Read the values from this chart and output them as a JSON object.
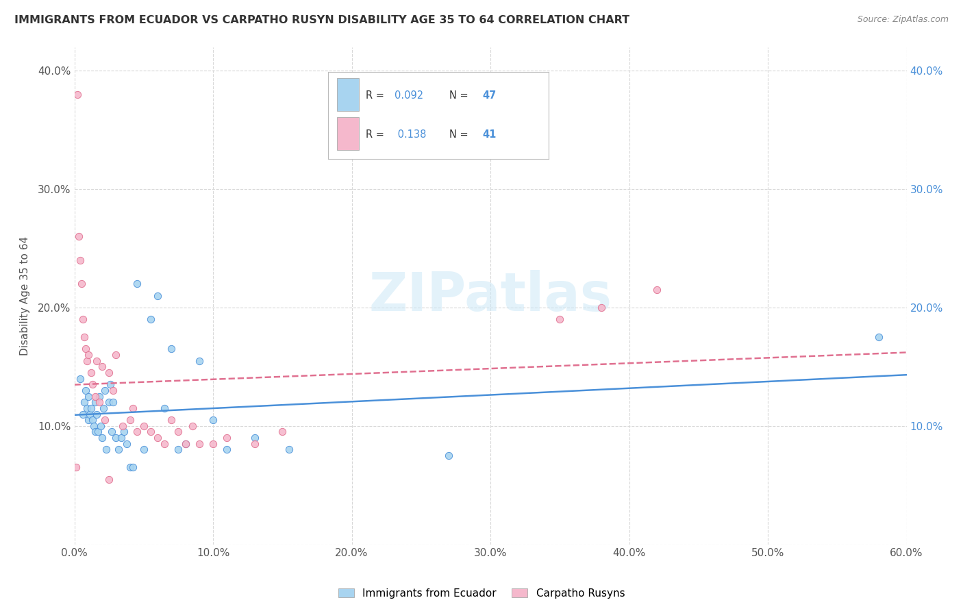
{
  "title": "IMMIGRANTS FROM ECUADOR VS CARPATHO RUSYN DISABILITY AGE 35 TO 64 CORRELATION CHART",
  "source": "Source: ZipAtlas.com",
  "ylabel": "Disability Age 35 to 64",
  "xlim": [
    0.0,
    0.6
  ],
  "ylim": [
    0.0,
    0.42
  ],
  "xticks": [
    0.0,
    0.1,
    0.2,
    0.3,
    0.4,
    0.5,
    0.6
  ],
  "yticks": [
    0.0,
    0.1,
    0.2,
    0.3,
    0.4
  ],
  "ytick_labels": [
    "",
    "10.0%",
    "20.0%",
    "30.0%",
    "40.0%"
  ],
  "xtick_labels": [
    "0.0%",
    "10.0%",
    "20.0%",
    "30.0%",
    "40.0%",
    "50.0%",
    "60.0%"
  ],
  "ecuador_color": "#a8d4f0",
  "carpatho_color": "#f5b8cc",
  "ecuador_R": 0.092,
  "ecuador_N": 47,
  "carpatho_R": 0.138,
  "carpatho_N": 41,
  "ecuador_line_color": "#4a90d9",
  "carpatho_line_color": "#e07090",
  "text_color_R": "#333333",
  "value_color": "#4a90d9",
  "background_color": "#ffffff",
  "grid_color": "#d8d8d8",
  "watermark": "ZIPatlas",
  "ecuador_x": [
    0.004,
    0.006,
    0.007,
    0.008,
    0.009,
    0.01,
    0.01,
    0.011,
    0.012,
    0.013,
    0.014,
    0.015,
    0.015,
    0.016,
    0.017,
    0.018,
    0.019,
    0.02,
    0.021,
    0.022,
    0.023,
    0.025,
    0.026,
    0.027,
    0.028,
    0.03,
    0.032,
    0.034,
    0.036,
    0.038,
    0.04,
    0.042,
    0.045,
    0.05,
    0.055,
    0.06,
    0.065,
    0.07,
    0.075,
    0.08,
    0.09,
    0.1,
    0.11,
    0.13,
    0.155,
    0.27,
    0.58
  ],
  "ecuador_y": [
    0.14,
    0.11,
    0.12,
    0.13,
    0.115,
    0.105,
    0.125,
    0.11,
    0.115,
    0.105,
    0.1,
    0.12,
    0.095,
    0.11,
    0.095,
    0.125,
    0.1,
    0.09,
    0.115,
    0.13,
    0.08,
    0.12,
    0.135,
    0.095,
    0.12,
    0.09,
    0.08,
    0.09,
    0.095,
    0.085,
    0.065,
    0.065,
    0.22,
    0.08,
    0.19,
    0.21,
    0.115,
    0.165,
    0.08,
    0.085,
    0.155,
    0.105,
    0.08,
    0.09,
    0.08,
    0.075,
    0.175
  ],
  "carpatho_x": [
    0.001,
    0.002,
    0.003,
    0.004,
    0.005,
    0.006,
    0.007,
    0.008,
    0.009,
    0.01,
    0.012,
    0.013,
    0.015,
    0.016,
    0.018,
    0.02,
    0.022,
    0.025,
    0.028,
    0.03,
    0.035,
    0.04,
    0.042,
    0.045,
    0.05,
    0.055,
    0.06,
    0.065,
    0.07,
    0.075,
    0.08,
    0.085,
    0.09,
    0.1,
    0.11,
    0.13,
    0.15,
    0.35,
    0.38,
    0.42,
    0.025
  ],
  "carpatho_y": [
    0.065,
    0.38,
    0.26,
    0.24,
    0.22,
    0.19,
    0.175,
    0.165,
    0.155,
    0.16,
    0.145,
    0.135,
    0.125,
    0.155,
    0.12,
    0.15,
    0.105,
    0.145,
    0.13,
    0.16,
    0.1,
    0.105,
    0.115,
    0.095,
    0.1,
    0.095,
    0.09,
    0.085,
    0.105,
    0.095,
    0.085,
    0.1,
    0.085,
    0.085,
    0.09,
    0.085,
    0.095,
    0.19,
    0.2,
    0.215,
    0.055
  ]
}
